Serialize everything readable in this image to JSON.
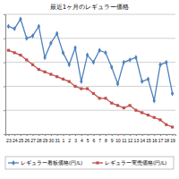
{
  "chart_data": {
    "type": "line",
    "title": "最近1ヶ月のレギュラー価格",
    "categories": [
      "23",
      "24",
      "25",
      "26",
      "27",
      "28",
      "29",
      "30",
      "31",
      "1",
      "2",
      "3",
      "4",
      "5",
      "6",
      "7",
      "8",
      "9",
      "10",
      "11",
      "12",
      "13",
      "14",
      "15",
      "16",
      "17",
      "18",
      "19"
    ],
    "series": [
      {
        "name": "レギュラー看板価格(円/L)",
        "color": "#4f81bd",
        "marker": "diamond",
        "values": [
          4.5,
          4.4,
          4.8,
          4.0,
          4.1,
          4.5,
          3.2,
          3.8,
          4.2,
          3.4,
          2.9,
          3.6,
          2.2,
          3.3,
          3.0,
          3.5,
          3.4,
          2.8,
          2.1,
          3.0,
          3.1,
          3.2,
          2.2,
          2.3,
          1.4,
          2.9,
          3.0,
          1.7
        ]
      },
      {
        "name": "レギュラー実売価格(円/L)",
        "color": "#c0504d",
        "marker": "square",
        "values": [
          3.5,
          3.4,
          3.3,
          3.1,
          2.9,
          2.7,
          2.6,
          2.5,
          2.4,
          2.3,
          2.2,
          2.0,
          1.9,
          1.9,
          1.7,
          1.5,
          1.5,
          1.3,
          1.2,
          1.1,
          1.2,
          1.0,
          0.9,
          0.8,
          0.7,
          0.6,
          0.4,
          0.3
        ]
      }
    ],
    "ylim": [
      0,
      5
    ],
    "yticks": [
      0,
      1,
      2,
      3,
      4,
      5
    ],
    "grid": true,
    "tick_labels": "x",
    "legend": "bottom"
  }
}
